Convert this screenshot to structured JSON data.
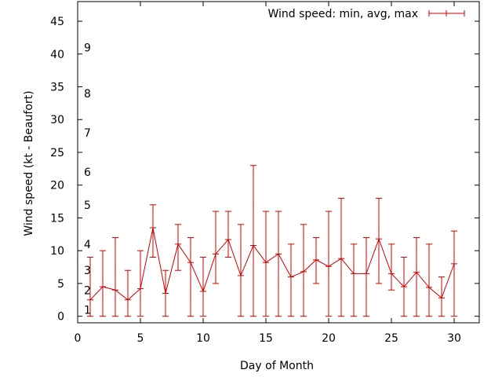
{
  "chart_data": {
    "type": "line",
    "title": "",
    "xlabel": "Day of Month",
    "ylabel": "Wind speed (kt - Beaufort)",
    "xlim": [
      0,
      32
    ],
    "ylim": [
      -1,
      48
    ],
    "xticks": [
      0,
      5,
      10,
      15,
      20,
      25,
      30
    ],
    "yticks": [
      0,
      5,
      10,
      15,
      20,
      25,
      30,
      35,
      40,
      45
    ],
    "grid": false,
    "legend_position": "top-right",
    "series": [
      {
        "name": "Wind speed: min, avg, max",
        "color": "#cc0000",
        "x": [
          1,
          2,
          3,
          4,
          5,
          6,
          7,
          8,
          9,
          10,
          11,
          12,
          13,
          14,
          15,
          16,
          17,
          18,
          19,
          20,
          21,
          22,
          23,
          24,
          25,
          26,
          27,
          28,
          29,
          30
        ],
        "avg": [
          2.5,
          4.5,
          4,
          2.5,
          4.2,
          13.5,
          3.5,
          11,
          8.2,
          3.8,
          9.5,
          11.7,
          6.2,
          10.8,
          8.2,
          9.5,
          6,
          6.8,
          8.6,
          7.6,
          8.8,
          6.5,
          6.5,
          11.8,
          6.5,
          4.5,
          6.7,
          4.4,
          2.8,
          8
        ],
        "min": [
          0,
          0,
          0,
          0,
          0,
          9,
          0,
          7,
          0,
          0,
          5,
          9,
          0,
          0,
          0,
          0,
          0,
          0,
          5,
          0,
          0,
          0,
          0,
          5,
          4,
          0,
          0,
          0,
          0,
          0
        ],
        "max": [
          9,
          10,
          12,
          7,
          10,
          17,
          7,
          14,
          12,
          9,
          16,
          16,
          14,
          23,
          16,
          16,
          11,
          14,
          12,
          16,
          18,
          11,
          12,
          18,
          11,
          9,
          12,
          11,
          6,
          13
        ]
      }
    ],
    "beaufort_labels": [
      {
        "label": "1",
        "y": 1
      },
      {
        "label": "2",
        "y": 4
      },
      {
        "label": "3",
        "y": 7
      },
      {
        "label": "4",
        "y": 11
      },
      {
        "label": "5",
        "y": 17
      },
      {
        "label": "6",
        "y": 22
      },
      {
        "label": "7",
        "y": 28
      },
      {
        "label": "8",
        "y": 34
      },
      {
        "label": "9",
        "y": 41
      }
    ]
  }
}
